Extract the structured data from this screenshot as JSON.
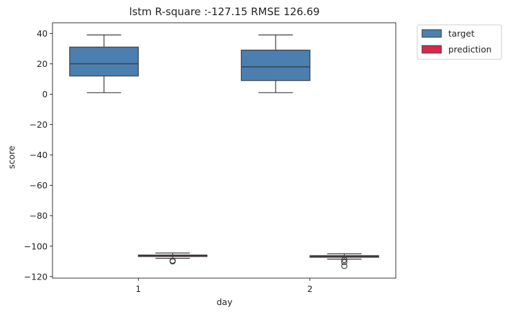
{
  "chart_data": {
    "type": "box",
    "title": "lstm R-square :-127.15 RMSE 126.69",
    "xlabel": "day",
    "ylabel": "score",
    "categories": [
      "1",
      "2"
    ],
    "ylim": [
      -121,
      47
    ],
    "yticks": [
      40,
      20,
      0,
      -20,
      -40,
      -60,
      -80,
      -100,
      -120
    ],
    "ytick_labels": [
      "40",
      "20",
      "0",
      "−20",
      "−40",
      "−60",
      "−80",
      "−100",
      "−120"
    ],
    "grid": false,
    "legend_position": "outside-top-right",
    "series": [
      {
        "name": "target",
        "color": "#4a7fb0",
        "boxes": [
          {
            "category": "1",
            "whisker_low": 1,
            "q1": 12,
            "median": 20,
            "q3": 31,
            "whisker_high": 39,
            "outliers": []
          },
          {
            "category": "2",
            "whisker_low": 1,
            "q1": 9,
            "median": 18,
            "q3": 29,
            "whisker_high": 39,
            "outliers": []
          }
        ]
      },
      {
        "name": "prediction",
        "color": "#d6284f",
        "boxes": [
          {
            "category": "1",
            "whisker_low": -108,
            "q1": -106.8,
            "median": -106.2,
            "q3": -105.8,
            "whisker_high": -104.5,
            "outliers": [
              -109.5,
              -110
            ]
          },
          {
            "category": "2",
            "whisker_low": -108.5,
            "q1": -107.3,
            "median": -106.7,
            "q3": -106.2,
            "whisker_high": -105,
            "outliers": [
              -109,
              -110.5,
              -113
            ]
          }
        ]
      }
    ]
  }
}
